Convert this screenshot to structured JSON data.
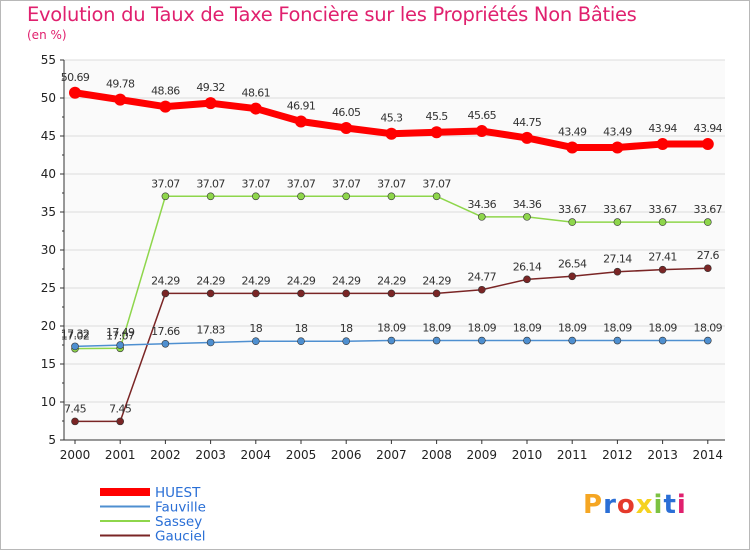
{
  "title": "Evolution du Taux de Taxe Foncière sur les Propriétés Non Bâties",
  "unit": "(en %)",
  "logo": {
    "text": "Proxiti",
    "colors": [
      "#f5a623",
      "#2b6fd6",
      "#e53a2b",
      "#f5d21f",
      "#7cc242",
      "#2b6fd6",
      "#e0206e"
    ]
  },
  "chart_data": {
    "type": "line",
    "title": "Evolution du Taux de Taxe Foncière sur les Propriétés Non Bâties",
    "ylabel": "(en %)",
    "xlabel": "",
    "ylim": [
      5,
      55
    ],
    "yticks": [
      5,
      10,
      15,
      20,
      25,
      30,
      35,
      40,
      45,
      50,
      55
    ],
    "categories": [
      "2000",
      "2001",
      "2002",
      "2003",
      "2004",
      "2005",
      "2006",
      "2007",
      "2008",
      "2009",
      "2010",
      "2011",
      "2012",
      "2013",
      "2014"
    ],
    "series": [
      {
        "name": "HUEST",
        "color": "#ff0000",
        "width": 7,
        "radius": 6,
        "labels": [
          "50.69",
          "49.78",
          "48.86",
          "49.32",
          "48.61",
          "46.91",
          "46.05",
          "45.3",
          "45.5",
          "45.65",
          "44.75",
          "43.49",
          "43.49",
          "43.94",
          "43.94"
        ],
        "values": [
          50.69,
          49.78,
          48.86,
          49.32,
          48.61,
          46.91,
          46.05,
          45.3,
          45.5,
          45.65,
          44.75,
          43.49,
          43.49,
          43.94,
          43.94
        ]
      },
      {
        "name": "Fauville",
        "color": "#4e8fd0",
        "width": 1.5,
        "radius": 3.5,
        "labels": [
          "17.32",
          "17.49",
          "17.66",
          "17.83",
          "18",
          "18",
          "18",
          "18.09",
          "18.09",
          "18.09",
          "18.09",
          "18.09",
          "18.09",
          "18.09",
          "18.09"
        ],
        "values": [
          17.32,
          17.49,
          17.66,
          17.83,
          18,
          18,
          18,
          18.09,
          18.09,
          18.09,
          18.09,
          18.09,
          18.09,
          18.09,
          18.09
        ]
      },
      {
        "name": "Sassey",
        "color": "#8ed64b",
        "width": 1.5,
        "radius": 3.5,
        "labels": [
          "17.02",
          "17.07",
          "37.07",
          "37.07",
          "37.07",
          "37.07",
          "37.07",
          "37.07",
          "37.07",
          "34.36",
          "34.36",
          "33.67",
          "33.67",
          "33.67",
          "33.67"
        ],
        "values": [
          17.02,
          17.07,
          37.07,
          37.07,
          37.07,
          37.07,
          37.07,
          37.07,
          37.07,
          34.36,
          34.36,
          33.67,
          33.67,
          33.67,
          33.67
        ]
      },
      {
        "name": "Gauciel",
        "color": "#7a2525",
        "width": 1.5,
        "radius": 3.5,
        "labels": [
          "7.45",
          "7.45",
          "24.29",
          "24.29",
          "24.29",
          "24.29",
          "24.29",
          "24.29",
          "24.29",
          "24.77",
          "26.14",
          "26.54",
          "27.14",
          "27.41",
          "27.6"
        ],
        "values": [
          7.45,
          7.45,
          24.29,
          24.29,
          24.29,
          24.29,
          24.29,
          24.29,
          24.29,
          24.77,
          26.14,
          26.54,
          27.14,
          27.41,
          27.6
        ]
      }
    ]
  }
}
